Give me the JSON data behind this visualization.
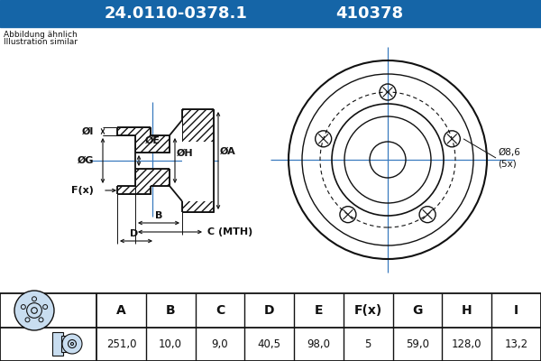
{
  "title_part": "24.0110-0378.1",
  "title_code": "410378",
  "header_bg": "#1565a7",
  "header_text_color": "#ffffff",
  "bg_color": "#c8ddf0",
  "drawing_bg": "#ffffff",
  "subtitle_line1": "Abbildung ähnlich",
  "subtitle_line2": "Illustration similar",
  "col_headers": [
    "A",
    "B",
    "C",
    "D",
    "E",
    "F(x)",
    "G",
    "H",
    "I"
  ],
  "col_values": [
    "251,0",
    "10,0",
    "9,0",
    "40,5",
    "98,0",
    "5",
    "59,0",
    "128,0",
    "13,2"
  ],
  "drawing_line_color": "#111111",
  "crosshair_color": "#3a7abf",
  "note_bolt": "Ø8,6\n(5x)"
}
